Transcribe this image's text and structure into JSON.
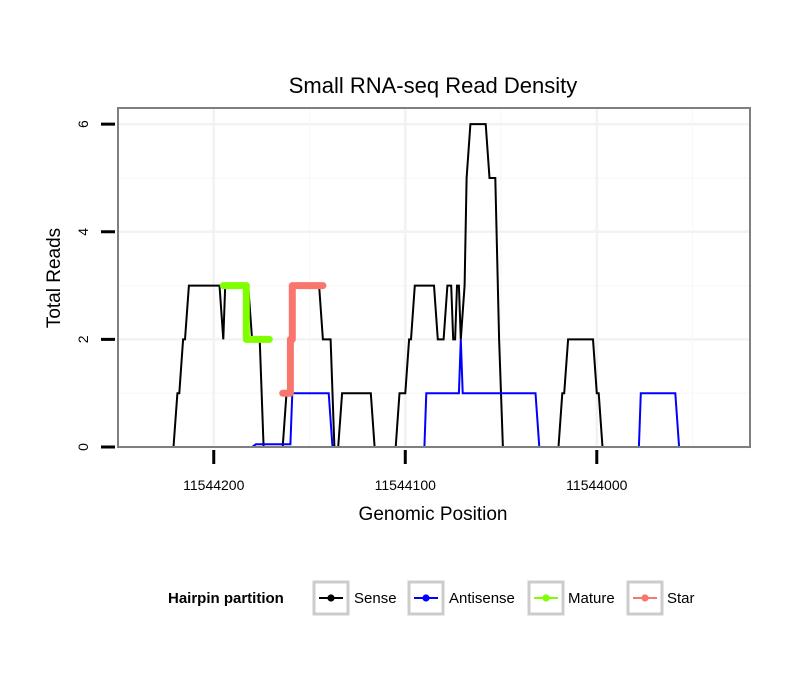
{
  "chart_data": {
    "type": "line",
    "title": "Small RNA-seq Read Density",
    "xlabel": "Genomic Position",
    "ylabel": "Total Reads",
    "xlim_reversed": [
      11544250,
      11543920
    ],
    "ylim": [
      0,
      6.3
    ],
    "x_ticks": [
      11544200,
      11544100,
      11544000
    ],
    "x_tick_labels": [
      "11544200",
      "11544100",
      "11544000"
    ],
    "y_ticks": [
      0,
      2,
      4,
      6
    ],
    "y_tick_labels": [
      "0",
      "2",
      "4",
      "6"
    ],
    "grid": true,
    "legend": {
      "title": "Hairpin partition",
      "position": "bottom",
      "entries": [
        {
          "label": "Sense",
          "color": "#000000"
        },
        {
          "label": "Antisense",
          "color": "#0000FF"
        },
        {
          "label": "Mature",
          "color": "#7FFF00"
        },
        {
          "label": "Star",
          "color": "#F8766D"
        }
      ]
    },
    "series": [
      {
        "name": "Sense",
        "color": "#000000",
        "style": "line",
        "points": [
          [
            11544245,
            0
          ],
          [
            11544221,
            0
          ],
          [
            11544219,
            1
          ],
          [
            11544218,
            1
          ],
          [
            11544216,
            2
          ],
          [
            11544215,
            2
          ],
          [
            11544213,
            3
          ],
          [
            11544197,
            3
          ],
          [
            11544195,
            2
          ],
          [
            11544194,
            3
          ],
          [
            11544182,
            3
          ],
          [
            11544180,
            2
          ],
          [
            11544176,
            2
          ],
          [
            11544174,
            0
          ],
          [
            11544164,
            0
          ],
          [
            11544162,
            1
          ],
          [
            11544160,
            1
          ],
          [
            11544158,
            3
          ],
          [
            11544145,
            3
          ],
          [
            11544143,
            2
          ],
          [
            11544139,
            2
          ],
          [
            11544137,
            0
          ],
          [
            11544135,
            0
          ],
          [
            11544133,
            1
          ],
          [
            11544118,
            1
          ],
          [
            11544116,
            0
          ],
          [
            11544105,
            0
          ],
          [
            11544103,
            1
          ],
          [
            11544100,
            1
          ],
          [
            11544098,
            2
          ],
          [
            11544097,
            2
          ],
          [
            11544095,
            3
          ],
          [
            11544085,
            3
          ],
          [
            11544083,
            2
          ],
          [
            11544080,
            2
          ],
          [
            11544078,
            3
          ],
          [
            11544076,
            3
          ],
          [
            11544075,
            2
          ],
          [
            11544074,
            2
          ],
          [
            11544073,
            3
          ],
          [
            11544072,
            3
          ],
          [
            11544071,
            2
          ],
          [
            11544069,
            3
          ],
          [
            11544068,
            5
          ],
          [
            11544066,
            6
          ],
          [
            11544058,
            6
          ],
          [
            11544056,
            5
          ],
          [
            11544053,
            5
          ],
          [
            11544051,
            2
          ],
          [
            11544049,
            0
          ],
          [
            11544020,
            0
          ],
          [
            11544018,
            1
          ],
          [
            11544017,
            1
          ],
          [
            11544015,
            2
          ],
          [
            11544002,
            2
          ],
          [
            11544000,
            1
          ],
          [
            11543999,
            1
          ],
          [
            11543997,
            0
          ],
          [
            11543923,
            0
          ]
        ]
      },
      {
        "name": "Antisense",
        "color": "#0000FF",
        "style": "line",
        "points": [
          [
            11544221,
            0
          ],
          [
            11544180,
            0
          ],
          [
            11544178,
            0.05
          ],
          [
            11544160,
            0.05
          ],
          [
            11544159,
            1
          ],
          [
            11544140,
            1
          ],
          [
            11544138,
            0
          ],
          [
            11544090,
            0
          ],
          [
            11544089,
            1
          ],
          [
            11544073,
            1
          ],
          [
            11544072,
            1
          ],
          [
            11544071,
            2
          ],
          [
            11544070,
            1
          ],
          [
            11544052,
            1
          ],
          [
            11544032,
            1
          ],
          [
            11544030,
            0
          ],
          [
            11543997,
            0
          ],
          [
            11543978,
            0
          ],
          [
            11543977,
            1
          ],
          [
            11543959,
            1
          ],
          [
            11543957,
            0
          ],
          [
            11543950,
            0
          ]
        ]
      },
      {
        "name": "Mature",
        "color": "#7FFF00",
        "style": "thick",
        "points": [
          [
            11544195,
            3
          ],
          [
            11544183,
            3
          ],
          [
            11544183,
            2
          ],
          [
            11544171,
            2
          ]
        ]
      },
      {
        "name": "Star",
        "color": "#F8766D",
        "style": "thick",
        "points": [
          [
            11544164,
            1
          ],
          [
            11544160,
            1
          ],
          [
            11544160,
            2
          ],
          [
            11544159,
            2
          ],
          [
            11544159,
            3
          ],
          [
            11544143,
            3
          ]
        ]
      }
    ]
  }
}
